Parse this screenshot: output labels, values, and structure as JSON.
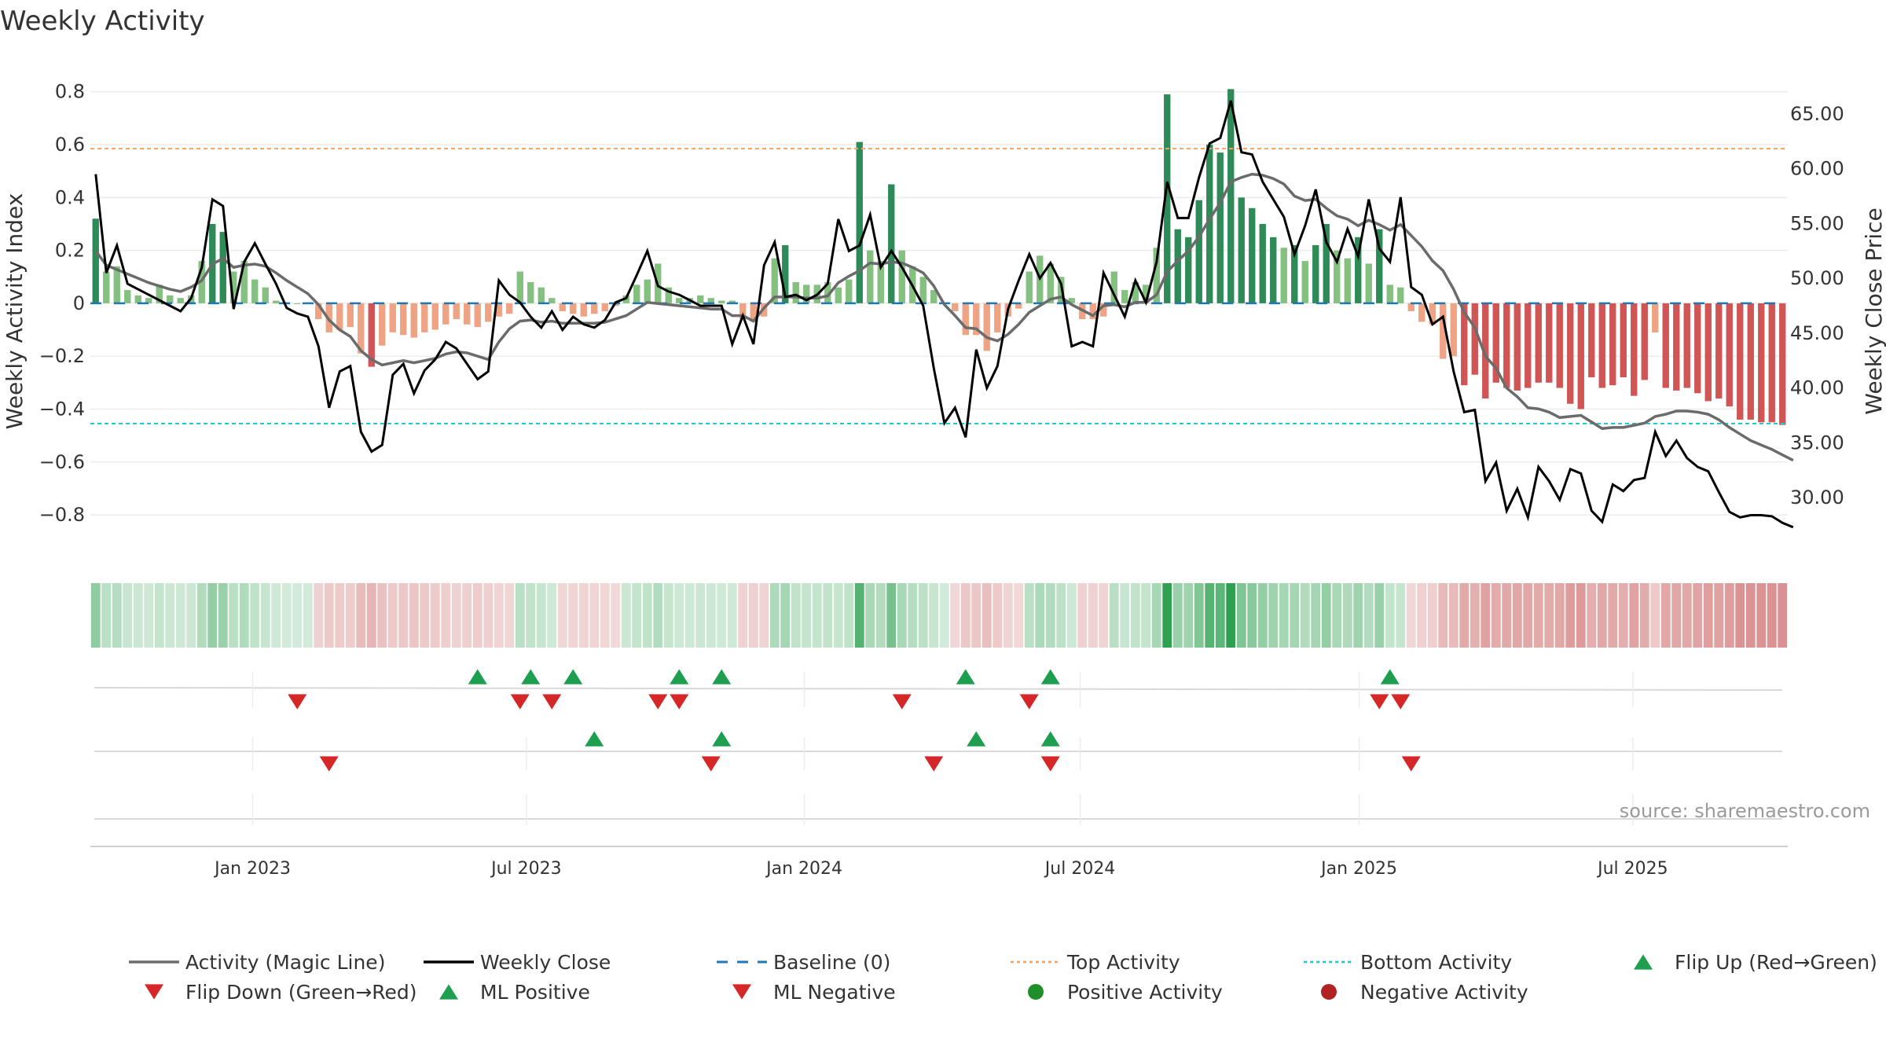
{
  "chart_data": {
    "type": "bar",
    "title": "Weekly Activity",
    "ylabel_left": "Weekly Activity Index",
    "ylabel_right": "Weekly Close Price",
    "left_axis": {
      "ylim": [
        -0.88,
        0.82
      ],
      "ticks": [
        0.8,
        0.6,
        0.4,
        0.2,
        0,
        -0.2,
        -0.4,
        -0.6,
        -0.8
      ],
      "tick_labels": [
        "0.8",
        "0.6",
        "0.4",
        "0.2",
        "0",
        "−0.2",
        "−0.4",
        "−0.6",
        "−0.8"
      ]
    },
    "right_axis": {
      "ylim": [
        26.5,
        67.5
      ],
      "ticks": [
        65,
        60,
        55,
        50,
        45,
        40,
        35,
        30
      ],
      "tick_labels": [
        "65.00",
        "60.00",
        "55.00",
        "50.00",
        "45.00",
        "40.00",
        "35.00",
        "30.00"
      ]
    },
    "x_axis": {
      "range_weeks": [
        0,
        156
      ],
      "ticks": [
        {
          "week": 15.3,
          "label": "Jan 2023"
        },
        {
          "week": 41.1,
          "label": "Jul 2023"
        },
        {
          "week": 67.3,
          "label": "Jan 2024"
        },
        {
          "week": 93.3,
          "label": "Jul 2024"
        },
        {
          "week": 119.6,
          "label": "Jan 2025"
        },
        {
          "week": 145.4,
          "label": "Jul 2025"
        }
      ]
    },
    "top_activity": 0.585,
    "bottom_activity": -0.455,
    "baseline": 0,
    "activity": [
      0.32,
      0.12,
      0.14,
      0.05,
      0.03,
      0.02,
      0.07,
      0.03,
      0.02,
      0.03,
      0.16,
      0.3,
      0.27,
      0.12,
      0.16,
      0.09,
      0.06,
      0.01,
      0.0,
      0.0,
      0.0,
      -0.06,
      -0.11,
      -0.1,
      -0.09,
      -0.19,
      -0.24,
      -0.16,
      -0.11,
      -0.12,
      -0.13,
      -0.11,
      -0.1,
      -0.08,
      -0.06,
      -0.08,
      -0.09,
      -0.07,
      -0.05,
      -0.04,
      0.12,
      0.08,
      0.06,
      0.02,
      -0.03,
      -0.04,
      -0.05,
      -0.04,
      -0.03,
      -0.01,
      0.03,
      0.07,
      0.09,
      0.15,
      0.06,
      0.02,
      0.02,
      0.03,
      0.02,
      0.01,
      0.01,
      -0.06,
      -0.07,
      -0.05,
      0.17,
      0.22,
      0.08,
      0.07,
      0.07,
      0.08,
      0.06,
      0.09,
      0.61,
      0.2,
      0.16,
      0.45,
      0.2,
      0.14,
      0.1,
      0.05,
      0.0,
      -0.03,
      -0.12,
      -0.12,
      -0.18,
      -0.11,
      -0.05,
      -0.02,
      0.12,
      0.18,
      0.15,
      0.1,
      0.02,
      -0.06,
      -0.06,
      -0.05,
      0.12,
      0.05,
      0.08,
      0.07,
      0.21,
      0.79,
      0.28,
      0.25,
      0.39,
      0.6,
      0.57,
      0.81,
      0.4,
      0.36,
      0.3,
      0.25,
      0.21,
      0.22,
      0.16,
      0.22,
      0.3,
      0.2,
      0.17,
      0.25,
      0.15,
      0.28,
      0.07,
      0.06,
      -0.03,
      -0.07,
      -0.08,
      -0.21,
      -0.2,
      -0.31,
      -0.27,
      -0.36,
      -0.3,
      -0.32,
      -0.33,
      -0.32,
      -0.3,
      -0.3,
      -0.32,
      -0.38,
      -0.4,
      -0.28,
      -0.32,
      -0.31,
      -0.28,
      -0.35,
      -0.29,
      -0.11,
      -0.32,
      -0.33,
      -0.32,
      -0.34,
      -0.37,
      -0.36,
      -0.39,
      -0.44,
      -0.44,
      -0.45,
      -0.45,
      -0.46
    ],
    "weekly_close": [
      59.5,
      50.5,
      53,
      49.5,
      49,
      48.5,
      48,
      47.5,
      47,
      48.2,
      51,
      57.2,
      56.6,
      47.2,
      51.5,
      53.2,
      51.3,
      49.5,
      47.3,
      46.8,
      46.5,
      43.8,
      38.2,
      41.5,
      42,
      36,
      34.2,
      34.8,
      41.2,
      42.2,
      39.5,
      41.6,
      42.6,
      44.2,
      43.6,
      42.2,
      40.8,
      41.5,
      49.8,
      48.5,
      47.8,
      46.5,
      45.5,
      47,
      45.3,
      46.5,
      45.8,
      45.5,
      46.2,
      47.8,
      48.2,
      50.3,
      52.5,
      49.3,
      48.8,
      48.5,
      48,
      47.5,
      47.5,
      47.5,
      44,
      46.6,
      44,
      51.2,
      53.3,
      48.3,
      48.5,
      48,
      48.5,
      49.5,
      55.4,
      52.5,
      53,
      55.8,
      51,
      52.5,
      51,
      49.3,
      47.5,
      41.8,
      36.8,
      38.2,
      35.5,
      43.5,
      40,
      42,
      47.2,
      49.8,
      52.2,
      50,
      51.4,
      49.5,
      43.8,
      44.2,
      43.8,
      50.5,
      48.5,
      46.5,
      49.8,
      47.8,
      51.5,
      58.8,
      55.5,
      55.5,
      59.2,
      62.3,
      62.8,
      66.2,
      61.5,
      61.3,
      58.8,
      57.2,
      55.6,
      52.2,
      54.8,
      58.1,
      53.3,
      51.5,
      54.5,
      52,
      57.2,
      52.7,
      51.5,
      57.4,
      49.2,
      48.5,
      45.8,
      46.5,
      41.5,
      37.8,
      38,
      31.5,
      33.2,
      28.8,
      30.8,
      28.2,
      32.8,
      31.5,
      29.8,
      32.6,
      32.2,
      28.8,
      27.8,
      31.2,
      30.6,
      31.6,
      31.8,
      36,
      33.8,
      35.2,
      33.6,
      32.8,
      32.4,
      30.5,
      28.7,
      28.2,
      28.4,
      28.4,
      28.3,
      27.7,
      27.3
    ],
    "magic_line": [
      52.5,
      51.2,
      50.8,
      50.4,
      50,
      49.6,
      49.3,
      49,
      48.8,
      49.2,
      49.8,
      51.3,
      51.8,
      51,
      51.2,
      51.3,
      51.1,
      50.5,
      49.8,
      49.2,
      48.6,
      47.6,
      46.2,
      45.3,
      44.7,
      43.4,
      42.6,
      42.1,
      42.3,
      42.5,
      42.3,
      42.5,
      42.7,
      43.1,
      43.3,
      43.2,
      42.9,
      42.6,
      44.2,
      45.4,
      46.1,
      46.2,
      46,
      46.1,
      45.9,
      45.9,
      45.9,
      45.9,
      46,
      46.3,
      46.6,
      47.2,
      47.8,
      47.7,
      47.6,
      47.5,
      47.4,
      47.3,
      47.2,
      47.2,
      46.6,
      46.6,
      46.1,
      47.3,
      48.3,
      48.3,
      48.3,
      48.2,
      48.2,
      48.4,
      49.6,
      50.2,
      50.7,
      51.4,
      51.3,
      51.5,
      51.4,
      51,
      50.5,
      49.3,
      47.6,
      46.6,
      45.5,
      45.4,
      44.6,
      44.3,
      44.9,
      45.8,
      46.9,
      47.5,
      48.1,
      48.3,
      47.6,
      47.1,
      46.6,
      47.5,
      47.6,
      47.4,
      47.8,
      47.8,
      48.5,
      50.6,
      51.6,
      52.5,
      53.8,
      55.4,
      56.9,
      58.8,
      59.2,
      59.5,
      59.4,
      59.1,
      58.6,
      57.5,
      57.1,
      57.2,
      56.4,
      55.7,
      55.4,
      54.8,
      55.3,
      54.9,
      54.4,
      54.9,
      53.9,
      52.9,
      51.6,
      50.7,
      49,
      46.9,
      45.5,
      42.9,
      41.8,
      40,
      39.2,
      38.2,
      38.1,
      37.8,
      37.3,
      37.4,
      37.5,
      36.9,
      36.3,
      36.4,
      36.4,
      36.6,
      36.8,
      37.4,
      37.6,
      37.9,
      37.9,
      37.8,
      37.6,
      37.1,
      36.4,
      35.8,
      35.2,
      34.8,
      34.4,
      33.9,
      33.4
    ],
    "flip_up_weeks": [
      36,
      41,
      45,
      55,
      59,
      82,
      90,
      122
    ],
    "flip_down_weeks": [
      19,
      40,
      43,
      53,
      55,
      76,
      88,
      121,
      123
    ],
    "ml_positive_weeks": [
      47,
      59,
      83,
      90
    ],
    "ml_negative_weeks": [
      22,
      58,
      79,
      90,
      124
    ],
    "source": "source: sharemaestro.com",
    "legend": [
      {
        "label": "Activity (Magic Line)",
        "marker": "line",
        "color": "#6b6b6b"
      },
      {
        "label": "Weekly Close",
        "marker": "line",
        "color": "#000000"
      },
      {
        "label": "Baseline (0)",
        "marker": "dash",
        "color": "#1f77b4"
      },
      {
        "label": "Top Activity",
        "marker": "dot-line",
        "color": "#f4a261"
      },
      {
        "label": "Bottom Activity",
        "marker": "dot-line",
        "color": "#1fc9d4"
      },
      {
        "label": "Flip Up (Red→Green)",
        "marker": "triangle-up",
        "color": "#1e9e4f"
      },
      {
        "label": "Flip Down (Green→Red)",
        "marker": "triangle-down",
        "color": "#d62728"
      },
      {
        "label": "ML Positive",
        "marker": "triangle-up",
        "color": "#1e9e4f"
      },
      {
        "label": "ML Negative",
        "marker": "triangle-down",
        "color": "#d62728"
      },
      {
        "label": "Positive Activity",
        "marker": "circle",
        "color": "#1f8f2a"
      },
      {
        "label": "Negative Activity",
        "marker": "circle",
        "color": "#b22222"
      }
    ],
    "colors": {
      "pos_strong": "#2e8b57",
      "pos_weak": "#84c180",
      "neg_strong": "#d05656",
      "neg_weak": "#eea384",
      "close": "#000000",
      "magic": "#6b6b6b",
      "top": "#f4a261",
      "bottom": "#1fc9d4",
      "baseline": "#1f77b4"
    }
  }
}
